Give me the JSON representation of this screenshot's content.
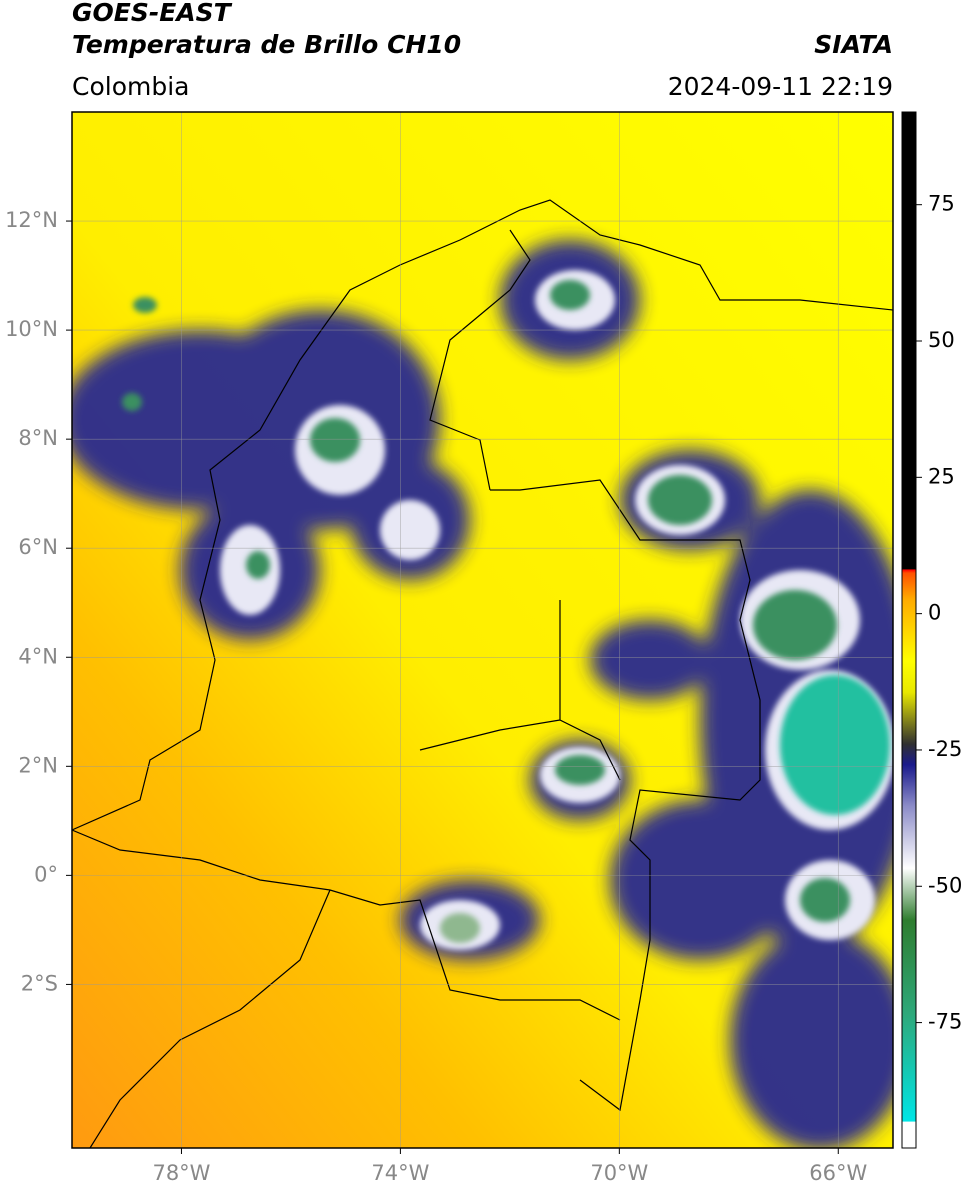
{
  "title": "GOES-EAST",
  "subtitle": "Temperatura de Brillo CH10",
  "source": "SIATA",
  "region": "Colombia",
  "timestamp": "2024-09-11 22:19",
  "map": {
    "xlim": [
      -80,
      -65
    ],
    "ylim": [
      -5,
      14
    ],
    "xticks": [
      {
        "value": -78,
        "label": "78°W"
      },
      {
        "value": -74,
        "label": "74°W"
      },
      {
        "value": -70,
        "label": "70°W"
      },
      {
        "value": -66,
        "label": "66°W"
      }
    ],
    "yticks": [
      {
        "value": 12,
        "label": "12°N"
      },
      {
        "value": 10,
        "label": "10°N"
      },
      {
        "value": 8,
        "label": "8°N"
      },
      {
        "value": 6,
        "label": "6°N"
      },
      {
        "value": 4,
        "label": "4°N"
      },
      {
        "value": 2,
        "label": "2°N"
      },
      {
        "value": 0,
        "label": "0°"
      },
      {
        "value": -2,
        "label": "2°S"
      }
    ],
    "grid": true
  },
  "colorbar": {
    "lim": [
      -98,
      92
    ],
    "ticks": [
      75,
      50,
      25,
      0,
      -25,
      -50,
      -75
    ]
  }
}
